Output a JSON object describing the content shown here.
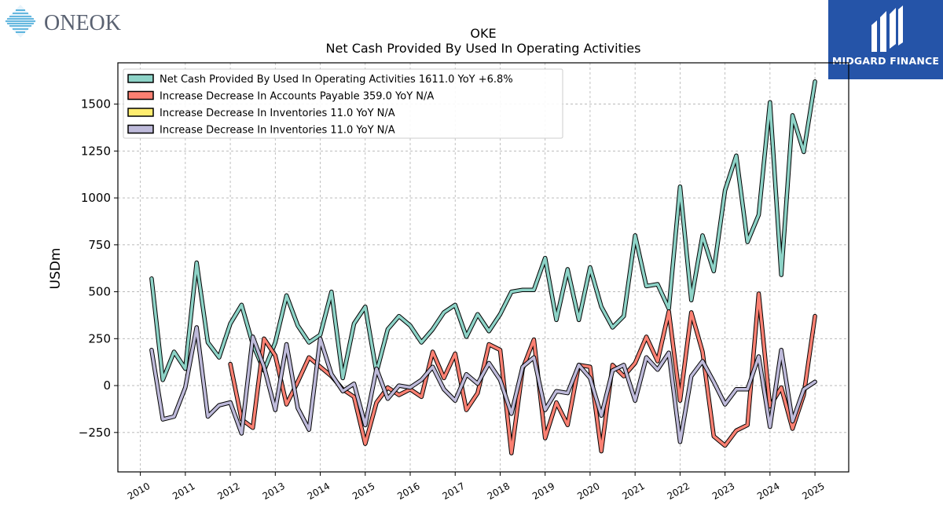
{
  "brand_left": {
    "name": "ONEOK",
    "color": "#5a6272",
    "icon_color": "#3aa3d6"
  },
  "brand_right": {
    "name": "MIDGARD FINANCE",
    "bg": "#2554a8"
  },
  "chart_data": {
    "type": "line",
    "title": "OKE",
    "subtitle": "Net Cash Provided By Used In Operating Activities",
    "ylabel": "USDm",
    "xlabel": "",
    "xlim": [
      2009.5,
      2025.75
    ],
    "ylim": [
      -460,
      1720
    ],
    "xticks": [
      2010,
      2011,
      2012,
      2013,
      2014,
      2015,
      2016,
      2017,
      2018,
      2019,
      2020,
      2021,
      2022,
      2023,
      2024,
      2025
    ],
    "yticks": [
      -250,
      0,
      250,
      500,
      750,
      1000,
      1250,
      1500
    ],
    "grid": true,
    "legend_position": "top-left",
    "series": [
      {
        "name": "Net Cash Provided By Used In Operating Activities",
        "legend": "Net Cash Provided By Used In Operating Activities  1611.0 YoY +6.8%",
        "color": "#8dd3c7",
        "x": [
          2010.25,
          2010.5,
          2010.75,
          2011.0,
          2011.25,
          2011.5,
          2011.75,
          2012.0,
          2012.25,
          2012.5,
          2012.75,
          2013.0,
          2013.25,
          2013.5,
          2013.75,
          2014.0,
          2014.25,
          2014.5,
          2014.75,
          2015.0,
          2015.25,
          2015.5,
          2015.75,
          2016.0,
          2016.25,
          2016.5,
          2016.75,
          2017.0,
          2017.25,
          2017.5,
          2017.75,
          2018.0,
          2018.25,
          2018.5,
          2018.75,
          2019.0,
          2019.25,
          2019.5,
          2019.75,
          2020.0,
          2020.25,
          2020.5,
          2020.75,
          2021.0,
          2021.25,
          2021.5,
          2021.75,
          2022.0,
          2022.25,
          2022.5,
          2022.75,
          2023.0,
          2023.25,
          2023.5,
          2023.75,
          2024.0,
          2024.25,
          2024.5,
          2024.75,
          2025.0
        ],
        "y": [
          570,
          30,
          180,
          90,
          655,
          230,
          150,
          330,
          430,
          220,
          80,
          230,
          480,
          320,
          230,
          270,
          500,
          40,
          330,
          420,
          70,
          300,
          370,
          320,
          230,
          300,
          390,
          430,
          260,
          380,
          290,
          380,
          500,
          510,
          510,
          680,
          350,
          620,
          350,
          630,
          420,
          310,
          370,
          800,
          530,
          540,
          410,
          1060,
          455,
          800,
          610,
          1040,
          1225,
          765,
          910,
          1510,
          590,
          1440,
          1245,
          1620
        ]
      },
      {
        "name": "Increase Decrease In Accounts Payable",
        "legend": "Increase Decrease In Accounts Payable  359.0 YoY N/A",
        "color": "#fb8072",
        "x": [
          2012.0,
          2012.25,
          2012.5,
          2012.75,
          2013.0,
          2013.25,
          2013.5,
          2013.75,
          2014.0,
          2014.25,
          2014.5,
          2014.75,
          2015.0,
          2015.25,
          2015.5,
          2015.75,
          2016.0,
          2016.25,
          2016.5,
          2016.75,
          2017.0,
          2017.25,
          2017.5,
          2017.75,
          2018.0,
          2018.25,
          2018.5,
          2018.75,
          2019.0,
          2019.25,
          2019.5,
          2019.75,
          2020.0,
          2020.25,
          2020.5,
          2020.75,
          2021.0,
          2021.25,
          2021.5,
          2021.75,
          2022.0,
          2022.25,
          2022.5,
          2022.75,
          2023.0,
          2023.25,
          2023.5,
          2023.75,
          2024.0,
          2024.25,
          2024.5,
          2024.75,
          2025.0
        ],
        "y": [
          115,
          -180,
          -225,
          250,
          160,
          -100,
          20,
          150,
          100,
          50,
          -20,
          -60,
          -310,
          -90,
          -10,
          -50,
          -20,
          -60,
          180,
          40,
          170,
          -130,
          -40,
          220,
          190,
          -360,
          90,
          245,
          -280,
          -90,
          -210,
          110,
          100,
          -350,
          110,
          50,
          120,
          260,
          130,
          395,
          -80,
          390,
          180,
          -270,
          -320,
          -240,
          -210,
          490,
          -110,
          -10,
          -230,
          -50,
          370
        ]
      },
      {
        "name": "Increase Decrease In Inventories",
        "legend": "Increase Decrease In Inventories  11.0 YoY N/A",
        "color": "#ffed6f",
        "x": [],
        "y": []
      },
      {
        "name": "Increase Decrease In Inventories",
        "legend": "Increase Decrease In Inventories  11.0 YoY N/A",
        "color": "#bebada",
        "x": [
          2010.25,
          2010.5,
          2010.75,
          2011.0,
          2011.25,
          2011.5,
          2011.75,
          2012.0,
          2012.25,
          2012.5,
          2012.75,
          2013.0,
          2013.25,
          2013.5,
          2013.75,
          2014.0,
          2014.25,
          2014.5,
          2014.75,
          2015.0,
          2015.25,
          2015.5,
          2015.75,
          2016.0,
          2016.25,
          2016.5,
          2016.75,
          2017.0,
          2017.25,
          2017.5,
          2017.75,
          2018.0,
          2018.25,
          2018.5,
          2018.75,
          2019.0,
          2019.25,
          2019.5,
          2019.75,
          2020.0,
          2020.25,
          2020.5,
          2020.75,
          2021.0,
          2021.25,
          2021.5,
          2021.75,
          2022.0,
          2022.25,
          2022.5,
          2022.75,
          2023.0,
          2023.25,
          2023.5,
          2023.75,
          2024.0,
          2024.25,
          2024.5,
          2024.75,
          2025.0
        ],
        "y": [
          190,
          -180,
          -165,
          -10,
          310,
          -165,
          -105,
          -90,
          -255,
          260,
          100,
          -130,
          220,
          -120,
          -235,
          250,
          60,
          -30,
          10,
          -210,
          90,
          -70,
          0,
          -10,
          30,
          100,
          -20,
          -80,
          60,
          10,
          120,
          30,
          -150,
          100,
          150,
          -130,
          -30,
          -40,
          110,
          40,
          -160,
          80,
          110,
          -80,
          150,
          85,
          175,
          -300,
          50,
          130,
          20,
          -100,
          -20,
          -20,
          155,
          -220,
          190,
          -190,
          -20,
          20
        ]
      }
    ]
  }
}
